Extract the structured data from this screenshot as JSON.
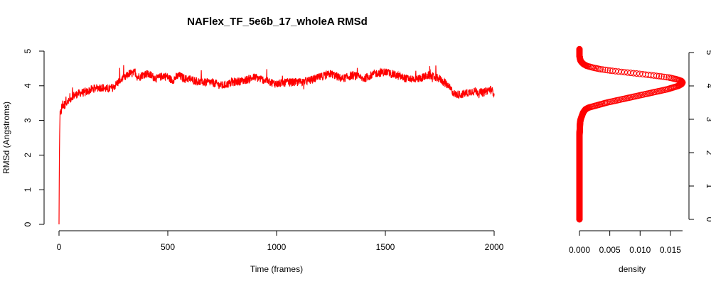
{
  "chart_data": [
    {
      "type": "line",
      "title": "NAFlex_TF_5e6b_17_wholeA RMSd",
      "xlabel": "Time (frames)",
      "ylabel": "RMSd (Angstroms)",
      "xlim": [
        0,
        2000
      ],
      "ylim": [
        0,
        5
      ],
      "x_ticks": [
        "0",
        "500",
        "1000",
        "1500",
        "2000"
      ],
      "y_ticks": [
        "0",
        "1",
        "2",
        "3",
        "4",
        "5"
      ],
      "grid": false,
      "color": "#ff0000",
      "series": [
        {
          "x": [
            0,
            1,
            2,
            3,
            4,
            6,
            8,
            10,
            15,
            20,
            25,
            30,
            40,
            50,
            60,
            80,
            100,
            120,
            150,
            180,
            200,
            220,
            250,
            270,
            290,
            300,
            320,
            340,
            350,
            360,
            380,
            400,
            420,
            450,
            480,
            500,
            520,
            550,
            580,
            600,
            650,
            700,
            750,
            800,
            850,
            900,
            950,
            1000,
            1050,
            1100,
            1150,
            1200,
            1250,
            1300,
            1350,
            1400,
            1450,
            1500,
            1550,
            1600,
            1650,
            1700,
            1750,
            1780,
            1800,
            1820,
            1850,
            1880,
            1900,
            1950,
            1980,
            2000
          ],
          "values": [
            0.0,
            1.2,
            2.1,
            2.6,
            2.9,
            3.1,
            3.2,
            3.3,
            3.4,
            3.5,
            3.4,
            3.6,
            3.5,
            3.6,
            3.7,
            3.75,
            3.8,
            3.8,
            3.9,
            3.95,
            3.95,
            3.9,
            3.95,
            4.1,
            4.2,
            4.2,
            4.35,
            4.35,
            4.4,
            4.25,
            4.3,
            4.35,
            4.3,
            4.2,
            4.3,
            4.25,
            4.15,
            4.3,
            4.2,
            4.2,
            4.1,
            4.1,
            4.0,
            4.1,
            4.15,
            4.25,
            4.15,
            4.05,
            4.1,
            4.1,
            4.15,
            4.25,
            4.35,
            4.2,
            4.3,
            4.2,
            4.35,
            4.4,
            4.3,
            4.2,
            4.2,
            4.3,
            4.2,
            4.05,
            3.9,
            3.75,
            3.75,
            3.8,
            3.85,
            3.8,
            3.9,
            3.8
          ],
          "noise": 0.12
        }
      ]
    },
    {
      "type": "scatter",
      "xlabel": "density",
      "ylabel": "",
      "xlim": [
        0,
        0.017
      ],
      "ylim": [
        0,
        5
      ],
      "x_ticks": [
        "0.000",
        "0.005",
        "0.010",
        "0.015"
      ],
      "y_ticks": [
        "0",
        "1",
        "2",
        "3",
        "4",
        "5"
      ],
      "grid": false,
      "color": "#ff0000",
      "marker": "open-circle",
      "density": {
        "y": [
          0.0,
          0.5,
          1.0,
          1.5,
          2.0,
          2.5,
          2.9,
          3.0,
          3.1,
          3.2,
          3.3,
          3.35,
          3.4,
          3.5,
          3.6,
          3.7,
          3.8,
          3.9,
          4.0,
          4.05,
          4.1,
          4.15,
          4.2,
          4.25,
          4.3,
          4.35,
          4.4,
          4.45,
          4.5,
          4.55,
          4.6,
          4.65,
          4.7,
          4.75,
          4.8,
          4.9,
          5.0,
          5.1
        ],
        "d": [
          0.0,
          0.0,
          0.0,
          0.0,
          0.0,
          0.0,
          0.0001,
          0.0002,
          0.0004,
          0.0006,
          0.001,
          0.0015,
          0.0025,
          0.0045,
          0.007,
          0.0095,
          0.012,
          0.0145,
          0.0163,
          0.0168,
          0.017,
          0.0168,
          0.016,
          0.0148,
          0.0128,
          0.0105,
          0.008,
          0.0055,
          0.0035,
          0.0022,
          0.0012,
          0.0007,
          0.0004,
          0.0002,
          0.0001,
          0.0,
          0.0,
          0.0
        ]
      }
    }
  ]
}
